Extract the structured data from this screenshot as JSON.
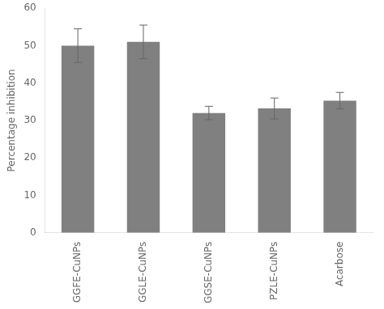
{
  "chart_data": {
    "type": "bar",
    "categories": [
      "GGFE-CuNPs",
      "GGLE-CuNPs",
      "GGSE-CuNPs",
      "PZLE-CuNPs",
      "Acarbose"
    ],
    "values": [
      50.0,
      51.0,
      32.0,
      33.2,
      35.3
    ],
    "errors": [
      4.5,
      4.5,
      1.8,
      2.8,
      2.2
    ],
    "color": "#808080",
    "ylabel": "Percentage inhibition",
    "ylim": [
      0,
      60
    ],
    "yticks": [
      0,
      10,
      20,
      30,
      40,
      50,
      60
    ],
    "grid": false
  }
}
